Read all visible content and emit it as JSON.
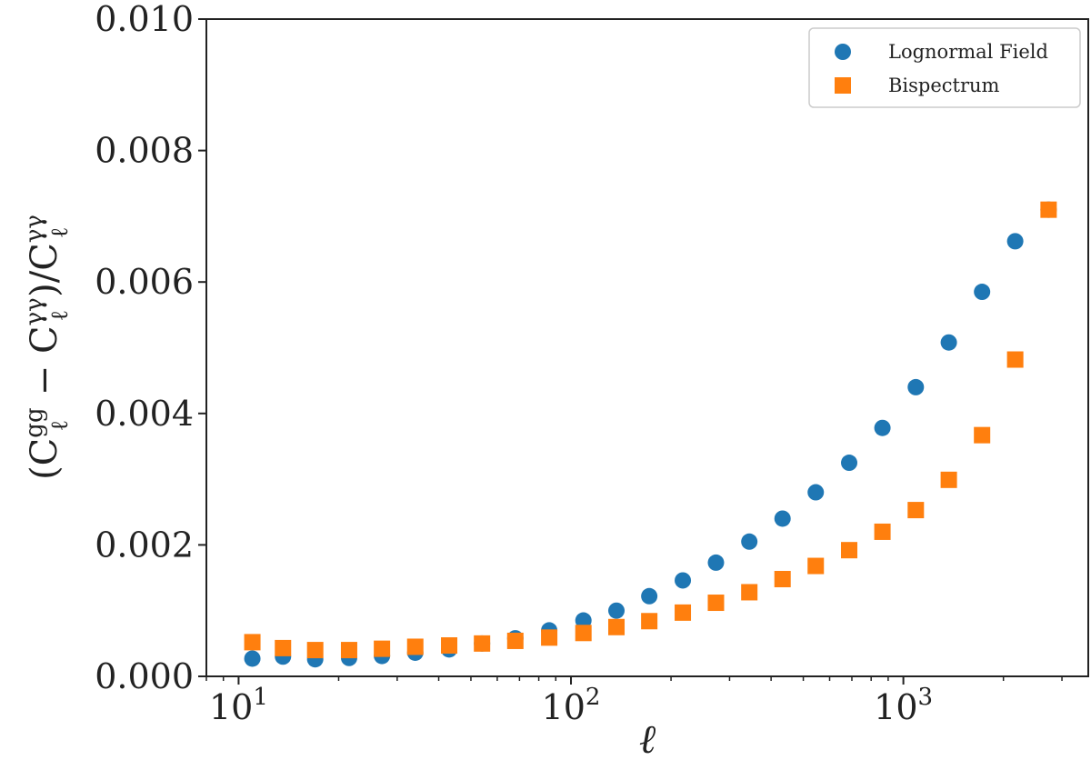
{
  "chart_data": {
    "type": "scatter",
    "xlabel": "ℓ",
    "ylabel_parts": {
      "open": "(C",
      "sup1": "gg",
      "sub1": "ℓ",
      "minus": " − C",
      "sup2": "γγ",
      "sub2": "ℓ",
      "div": ")/C",
      "sup3": "γγ",
      "sub3": "ℓ"
    },
    "x_scale": "log",
    "xlim": [
      8,
      3600
    ],
    "ylim": [
      0.0,
      0.01
    ],
    "x_ticks": [
      {
        "value": 10,
        "base": "10",
        "exp": "1"
      },
      {
        "value": 100,
        "base": "10",
        "exp": "2"
      },
      {
        "value": 1000,
        "base": "10",
        "exp": "3"
      }
    ],
    "y_ticks": [
      {
        "value": 0.0,
        "label": "0.000"
      },
      {
        "value": 0.002,
        "label": "0.002"
      },
      {
        "value": 0.004,
        "label": "0.004"
      },
      {
        "value": 0.006,
        "label": "0.006"
      },
      {
        "value": 0.008,
        "label": "0.008"
      },
      {
        "value": 0.01,
        "label": "0.010"
      }
    ],
    "legend_position": "top-right",
    "grid": false,
    "series": [
      {
        "name": "Lognormal Field",
        "marker": "circle",
        "color": "#1f77b4",
        "points": [
          [
            11,
            0.00027
          ],
          [
            13.6,
            0.0003
          ],
          [
            17,
            0.00026
          ],
          [
            21.5,
            0.00028
          ],
          [
            27,
            0.00031
          ],
          [
            34,
            0.00036
          ],
          [
            43,
            0.00041
          ],
          [
            54,
            0.0005
          ],
          [
            68,
            0.00058
          ],
          [
            86,
            0.0007
          ],
          [
            109,
            0.00085
          ],
          [
            137,
            0.001
          ],
          [
            172,
            0.00122
          ],
          [
            217,
            0.00146
          ],
          [
            273,
            0.00173
          ],
          [
            344,
            0.00205
          ],
          [
            433,
            0.0024
          ],
          [
            545,
            0.0028
          ],
          [
            687,
            0.00325
          ],
          [
            865,
            0.00378
          ],
          [
            1090,
            0.0044
          ],
          [
            1370,
            0.00508
          ],
          [
            1725,
            0.00585
          ],
          [
            2170,
            0.00662
          ],
          [
            2735,
            0.0071
          ]
        ]
      },
      {
        "name": "Bispectrum",
        "marker": "square",
        "color": "#ff7f0e",
        "points": [
          [
            11,
            0.00052
          ],
          [
            13.6,
            0.00043
          ],
          [
            17,
            0.0004
          ],
          [
            21.5,
            0.0004
          ],
          [
            27,
            0.00042
          ],
          [
            34,
            0.00045
          ],
          [
            43,
            0.00047
          ],
          [
            54,
            0.0005
          ],
          [
            68,
            0.00054
          ],
          [
            86,
            0.00059
          ],
          [
            109,
            0.00066
          ],
          [
            137,
            0.00075
          ],
          [
            172,
            0.00084
          ],
          [
            217,
            0.00097
          ],
          [
            273,
            0.00112
          ],
          [
            344,
            0.00128
          ],
          [
            433,
            0.00148
          ],
          [
            545,
            0.00168
          ],
          [
            687,
            0.00192
          ],
          [
            865,
            0.0022
          ],
          [
            1090,
            0.00253
          ],
          [
            1370,
            0.00299
          ],
          [
            1725,
            0.00367
          ],
          [
            2170,
            0.00482
          ],
          [
            2735,
            0.0071
          ]
        ]
      }
    ]
  }
}
